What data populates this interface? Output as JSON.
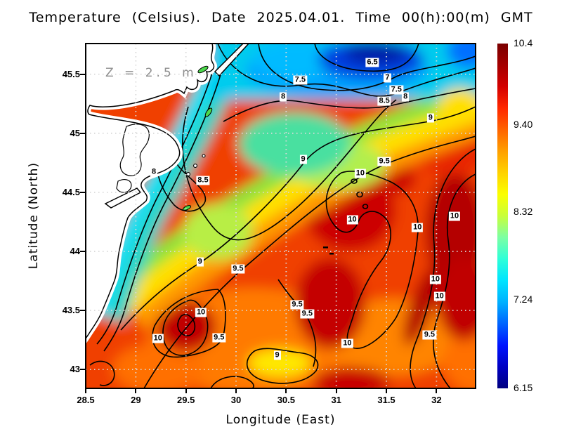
{
  "title": "Temperature (Celsius). Date 2025.04.01. Time 00(h):00(m) GMT",
  "annotation": "Z = 2.5 m",
  "colors": {
    "land": "#ffffff",
    "coastline": "#000000",
    "contour_lines": "#000000",
    "grid_dots": "#d9d9d9",
    "annotation_text": "#8e8e8e"
  },
  "chart_data": {
    "type": "heatmap",
    "subtype": "filled_contour_map",
    "title": "Temperature (Celsius). Date 2025.04.01. Time 00(h):00(m) GMT",
    "xlabel": "Longitude (East)",
    "ylabel": "Latitude (North)",
    "xlim": [
      28.5,
      32.39
    ],
    "ylim": [
      42.84,
      45.76
    ],
    "xticks": [
      "28.5",
      "29",
      "29.5",
      "30",
      "30.5",
      "31",
      "31.5",
      "32"
    ],
    "yticks": [
      "45.5",
      "45",
      "44.5",
      "44",
      "43.5",
      "43"
    ],
    "grid": true,
    "depth_annotation": "Z = 2.5 m",
    "colorbar": {
      "min": 6.15,
      "max": 10.4,
      "tick_labels": [
        "10.4",
        "9.40",
        "8.32",
        "7.24",
        "6.15"
      ],
      "colormap": "jet",
      "gradient": [
        "#7a0000",
        "#a50000",
        "#d40000",
        "#ff2800",
        "#ff6400",
        "#ffa000",
        "#ffd200",
        "#fbff00",
        "#c8ff3a",
        "#7cffa4",
        "#2effd8",
        "#00e4ff",
        "#00b0ff",
        "#0064ff",
        "#0014ff",
        "#0000c3",
        "#00007f"
      ]
    },
    "contour_levels": [
      6.5,
      7,
      7.5,
      8,
      8.5,
      9,
      9.5,
      10
    ],
    "contour_labels": [
      {
        "value": "6.5",
        "lon": 31.36,
        "lat": 45.6
      },
      {
        "value": "7.5",
        "lon": 30.64,
        "lat": 45.45
      },
      {
        "value": "7",
        "lon": 31.51,
        "lat": 45.47
      },
      {
        "value": "7.5",
        "lon": 31.6,
        "lat": 45.37
      },
      {
        "value": "8",
        "lon": 30.47,
        "lat": 45.31
      },
      {
        "value": "8.5",
        "lon": 31.48,
        "lat": 45.27
      },
      {
        "value": "8",
        "lon": 31.69,
        "lat": 45.31
      },
      {
        "value": "9",
        "lon": 31.94,
        "lat": 45.13
      },
      {
        "value": "8",
        "lon": 29.18,
        "lat": 44.67
      },
      {
        "value": "8.5",
        "lon": 29.67,
        "lat": 44.6
      },
      {
        "value": "9",
        "lon": 30.67,
        "lat": 44.78
      },
      {
        "value": "9.5",
        "lon": 31.48,
        "lat": 44.76
      },
      {
        "value": "10",
        "lon": 31.24,
        "lat": 44.66
      },
      {
        "value": "10",
        "lon": 31.16,
        "lat": 44.27
      },
      {
        "value": "10",
        "lon": 31.81,
        "lat": 44.2
      },
      {
        "value": "10",
        "lon": 32.18,
        "lat": 44.3
      },
      {
        "value": "9",
        "lon": 29.64,
        "lat": 43.91
      },
      {
        "value": "9.5",
        "lon": 30.02,
        "lat": 43.85
      },
      {
        "value": "10",
        "lon": 31.99,
        "lat": 43.76
      },
      {
        "value": "10",
        "lon": 32.03,
        "lat": 43.62
      },
      {
        "value": "9.5",
        "lon": 30.61,
        "lat": 43.55
      },
      {
        "value": "9.5",
        "lon": 30.71,
        "lat": 43.47
      },
      {
        "value": "10",
        "lon": 29.65,
        "lat": 43.48
      },
      {
        "value": "10",
        "lon": 29.22,
        "lat": 43.26
      },
      {
        "value": "9.5",
        "lon": 29.83,
        "lat": 43.27
      },
      {
        "value": "9.5",
        "lon": 31.93,
        "lat": 43.29
      },
      {
        "value": "10",
        "lon": 31.11,
        "lat": 43.22
      },
      {
        "value": "9",
        "lon": 30.41,
        "lat": 43.12
      }
    ]
  }
}
